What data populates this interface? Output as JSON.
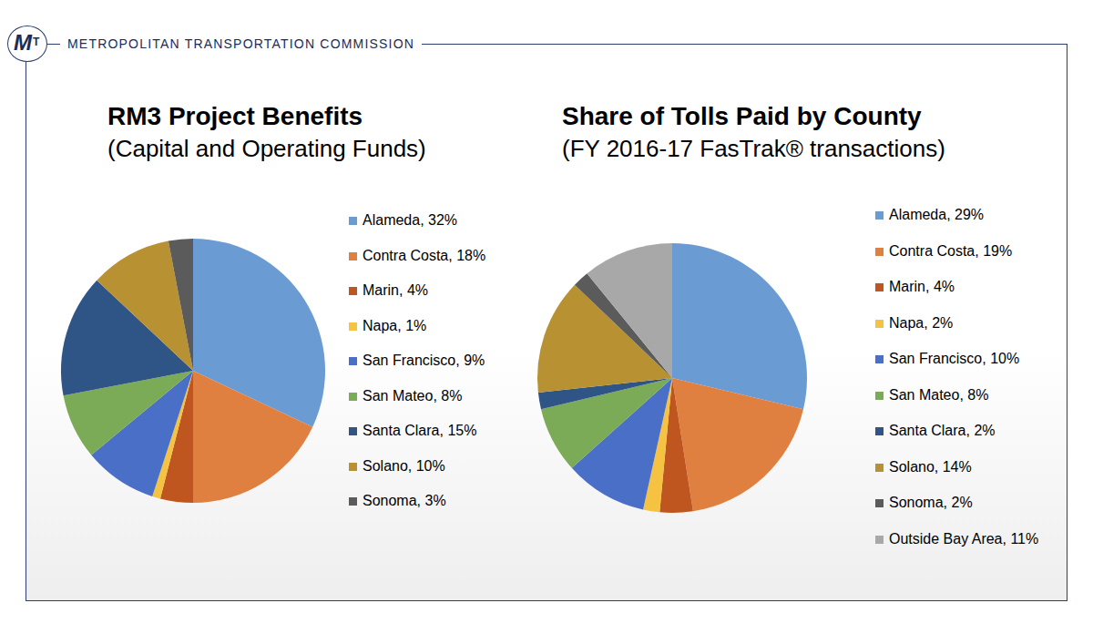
{
  "header": {
    "logo": [
      "M",
      "T"
    ],
    "text": "METROPOLITAN TRANSPORTATION COMMISSION"
  },
  "chart_data": [
    {
      "type": "pie",
      "title": "RM3 Project Benefits",
      "subtitle": "(Capital and Operating Funds)",
      "categories": [
        "Alameda, 32%",
        "Contra Costa, 18%",
        "Marin, 4%",
        "Napa, 1%",
        "San Francisco, 9%",
        "San Mateo, 8%",
        "Santa Clara, 15%",
        "Solano, 10%",
        "Sonoma, 3%"
      ],
      "values": [
        32,
        18,
        4,
        1,
        9,
        8,
        15,
        10,
        3
      ],
      "colors": [
        "#6b9bd3",
        "#e08040",
        "#c0561f",
        "#f5c242",
        "#4a6fc6",
        "#7bab57",
        "#2f5486",
        "#b89132",
        "#5b5b5b"
      ],
      "data_labels": false
    },
    {
      "type": "pie",
      "title": "Share of Tolls Paid by County",
      "subtitle": "(FY 2016-17 FasTrak® transactions)",
      "categories": [
        "Alameda, 29%",
        "Contra Costa, 19%",
        "Marin, 4%",
        "Napa, 2%",
        "San Francisco, 10%",
        "San Mateo, 8%",
        "Santa Clara, 2%",
        "Solano, 14%",
        "Sonoma, 2%",
        "Outside Bay Area, 11%"
      ],
      "values": [
        29,
        19,
        4,
        2,
        10,
        8,
        2,
        14,
        2,
        11
      ],
      "colors": [
        "#6b9bd3",
        "#e08040",
        "#c0561f",
        "#f5c242",
        "#4a6fc6",
        "#7bab57",
        "#2f5486",
        "#b89132",
        "#5b5b5b",
        "#a8a8a8"
      ],
      "data_labels": false
    }
  ]
}
